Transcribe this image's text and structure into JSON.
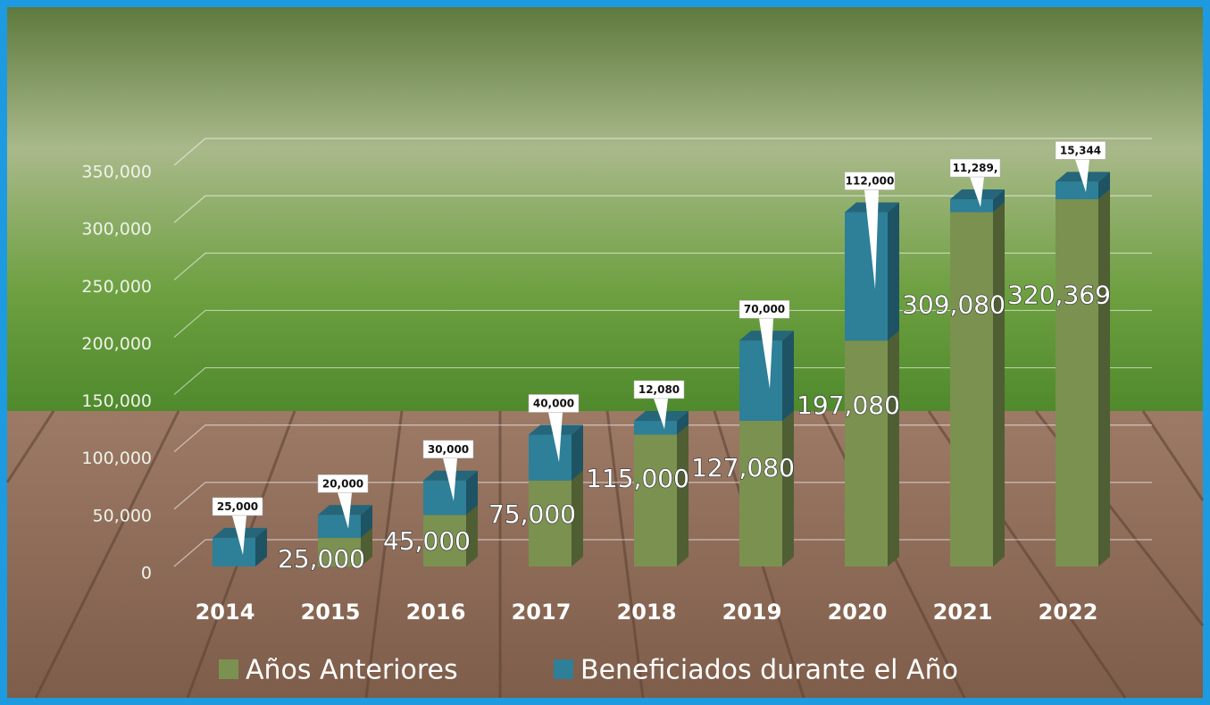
{
  "chart_data": {
    "type": "bar3d_stacked",
    "categories": [
      "2014",
      "2015",
      "2016",
      "2017",
      "2018",
      "2019",
      "2020",
      "2021",
      "2022"
    ],
    "series": [
      {
        "name": "Años Anteriores",
        "color": "#7b9150",
        "values": [
          null,
          25000,
          45000,
          75000,
          115000,
          127080,
          197080,
          309080,
          320369
        ],
        "value_labels": [
          null,
          "25,000",
          "45,000",
          "75,000",
          "115,000",
          "127,080",
          "197,080",
          "309,080",
          "320,369"
        ]
      },
      {
        "name": "Beneficiados durante el Año",
        "color": "#2e7f98",
        "values": [
          25000,
          20000,
          30000,
          40000,
          12080,
          70000,
          112000,
          11289,
          15344
        ],
        "value_labels": [
          "25,000",
          "20,000",
          "30,000",
          "40,000",
          "12,080",
          "70,000",
          "112,000",
          "11,289,",
          "15,344"
        ]
      }
    ],
    "ylim": [
      0,
      350000
    ],
    "yticks": [
      0,
      {
        "value": 50000,
        "label": "50,000"
      },
      {
        "value": 100000,
        "label": "100,000"
      },
      {
        "value": 150000,
        "label": "150,000"
      },
      {
        "value": 200000,
        "label": "200,000"
      },
      {
        "value": 250000,
        "label": "250,000"
      },
      {
        "value": 300000,
        "label": "300,000"
      },
      {
        "value": 350000,
        "label": "350,000"
      }
    ],
    "grid": true,
    "legend": "bottom"
  }
}
